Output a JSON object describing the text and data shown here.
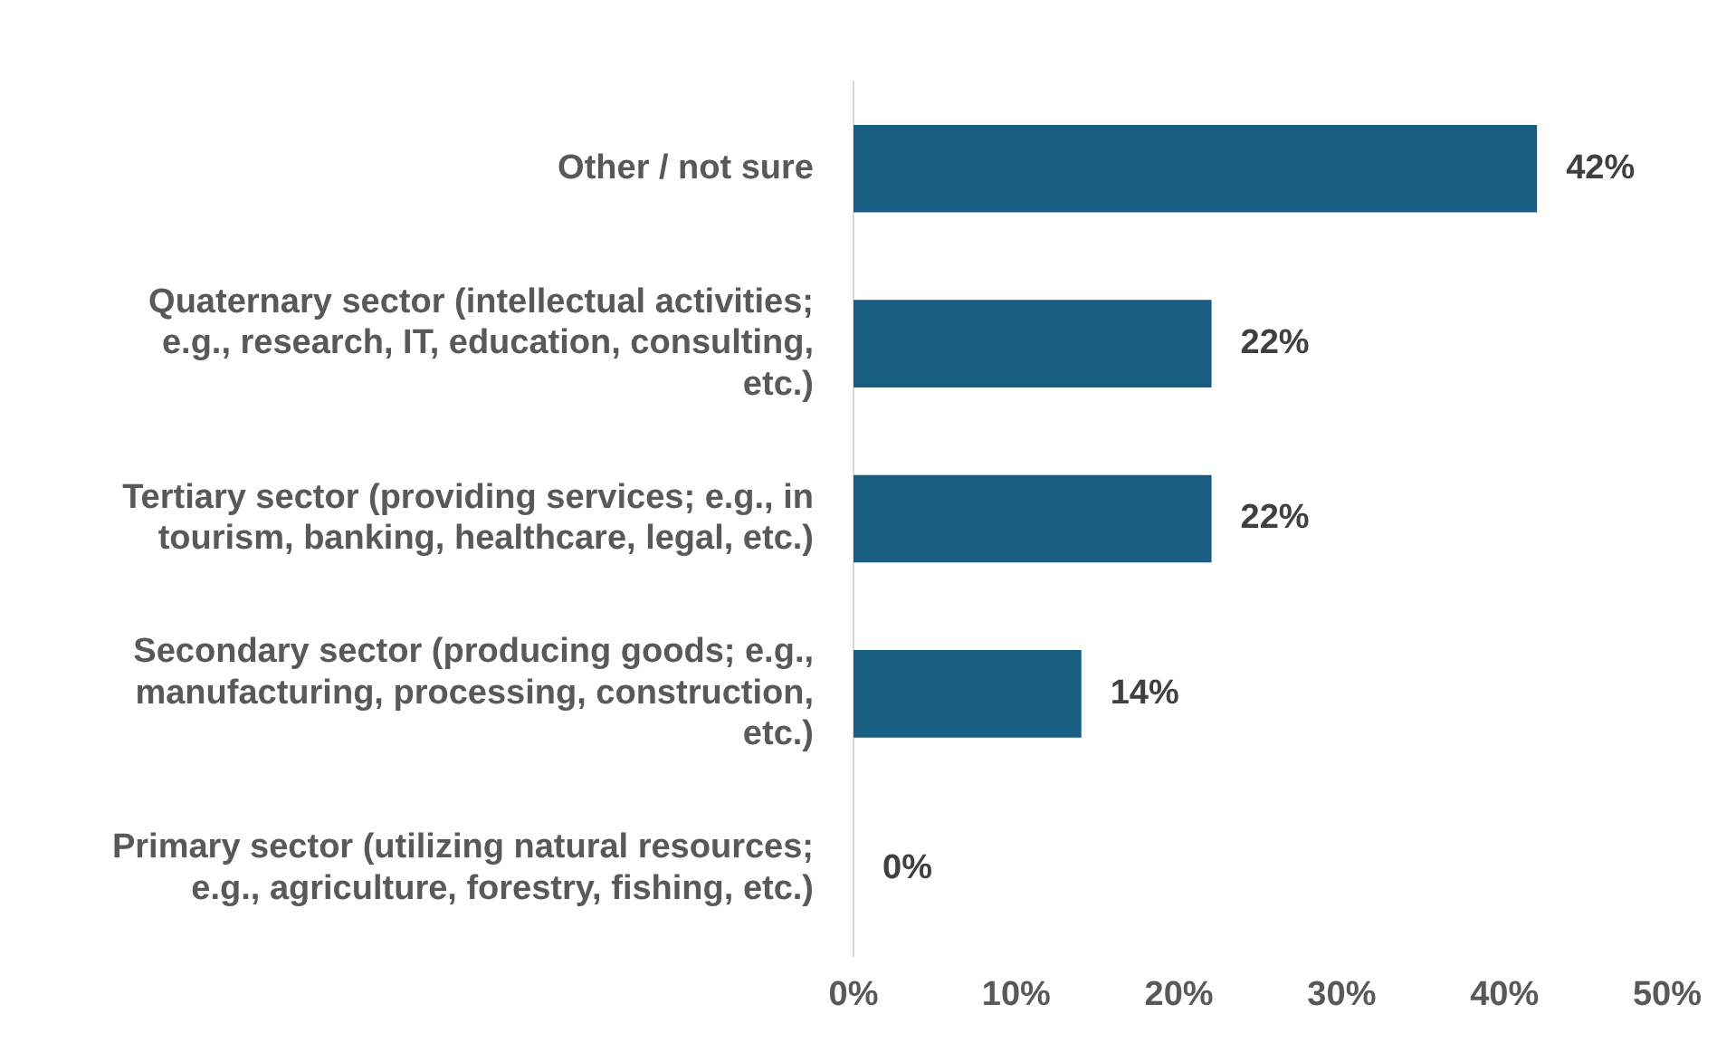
{
  "chart_data": {
    "type": "bar",
    "orientation": "horizontal",
    "categories": [
      "Other / not sure",
      "Quaternary sector (intellectual activities; e.g., research, IT, education, consulting, etc.)",
      "Tertiary sector (providing services; e.g., in tourism, banking, healthcare, legal, etc.)",
      "Secondary sector (producing goods; e.g., manufacturing, processing, construction, etc.)",
      "Primary sector (utilizing natural resources; e.g., agriculture, forestry, fishing, etc.)"
    ],
    "values": [
      42,
      22,
      22,
      14,
      0
    ],
    "value_labels": [
      "42%",
      "22%",
      "22%",
      "14%",
      "0%"
    ],
    "color": "#175e82",
    "xlim": [
      0,
      50
    ],
    "xticks": [
      {
        "value": 0,
        "label": "0%"
      },
      {
        "value": 10,
        "label": "10%"
      },
      {
        "value": 20,
        "label": "20%"
      },
      {
        "value": 30,
        "label": "30%"
      },
      {
        "value": 40,
        "label": "40%"
      },
      {
        "value": 50,
        "label": "50%"
      }
    ],
    "grid": false,
    "legend": false
  }
}
